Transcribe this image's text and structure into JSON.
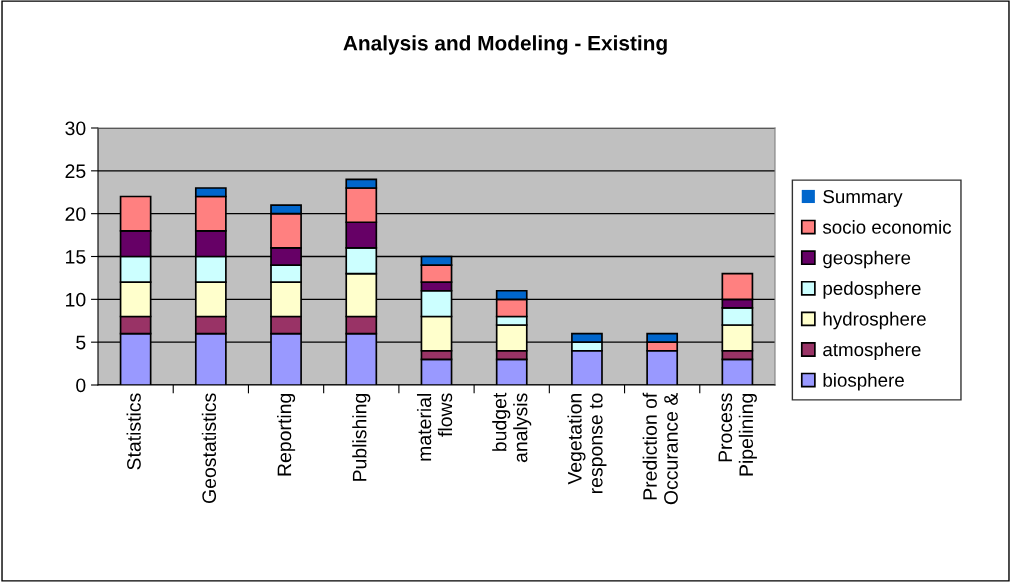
{
  "chart_data": {
    "type": "bar",
    "title": "Analysis and Modeling - Existing",
    "stacked": true,
    "categories": [
      "Statistics",
      "Geostatistics",
      "Reporting",
      "Publishing",
      "material\nflows",
      "budget\nanalysis",
      "Vegetation\nresponse to",
      "Prediction of\nOccurance &",
      "Process\nPipelining"
    ],
    "series": [
      {
        "name": "biosphere",
        "color": "#9999ff",
        "values": [
          6,
          6,
          6,
          6,
          3,
          3,
          4,
          4,
          3
        ]
      },
      {
        "name": "atmosphere",
        "color": "#993366",
        "values": [
          2,
          2,
          2,
          2,
          1,
          1,
          0,
          0,
          1
        ]
      },
      {
        "name": "hydrosphere",
        "color": "#ffffcc",
        "values": [
          4,
          4,
          4,
          5,
          4,
          3,
          0,
          0,
          3
        ]
      },
      {
        "name": "pedosphere",
        "color": "#ccffff",
        "values": [
          3,
          3,
          2,
          3,
          3,
          1,
          1,
          0,
          2
        ]
      },
      {
        "name": "geosphere",
        "color": "#660066",
        "values": [
          3,
          3,
          2,
          3,
          1,
          0,
          0,
          0,
          1
        ]
      },
      {
        "name": "socio economic",
        "color": "#ff8080",
        "values": [
          4,
          4,
          4,
          4,
          2,
          2,
          0,
          1,
          3
        ]
      },
      {
        "name": "Summary",
        "color": "#0066cc",
        "values": [
          0,
          1,
          1,
          1,
          1,
          1,
          1,
          1,
          0
        ]
      }
    ],
    "ylim": [
      0,
      30
    ],
    "yticks": [
      0,
      5,
      10,
      15,
      20,
      25,
      30
    ],
    "grid": "y",
    "legend": "right"
  }
}
